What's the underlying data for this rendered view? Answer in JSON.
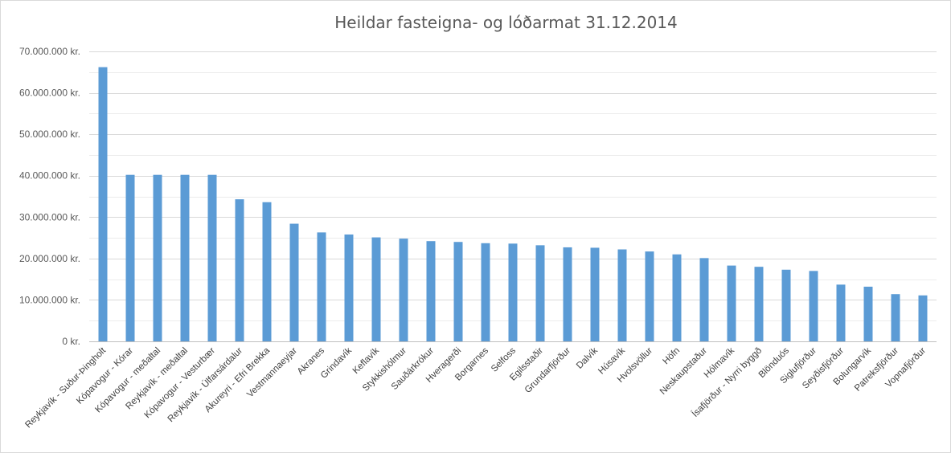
{
  "chart_data": {
    "type": "bar",
    "title": "Heildar fasteigna- og lóðarmat 31.12.2014",
    "xlabel": "",
    "ylabel": "",
    "ylim": [
      0,
      70000000
    ],
    "y_ticks": [
      {
        "value": 0,
        "label": "0 kr."
      },
      {
        "value": 10000000,
        "label": "10.000.000 kr."
      },
      {
        "value": 20000000,
        "label": "20.000.000 kr."
      },
      {
        "value": 30000000,
        "label": "30.000.000 kr."
      },
      {
        "value": 40000000,
        "label": "40.000.000 kr."
      },
      {
        "value": 50000000,
        "label": "50.000.000 kr."
      },
      {
        "value": 60000000,
        "label": "60.000.000 kr."
      },
      {
        "value": 70000000,
        "label": "70.000.000 kr."
      }
    ],
    "grid": true,
    "legend": "none",
    "bar_color": "#5b9bd5",
    "categories": [
      "Reykjavík - Suður-Þingholt",
      "Kópavogur - Kórar",
      "Kópavogur - meðaltal",
      "Reykjavík - meðaltal",
      "Kópavogur - Vesturbær",
      "Reykjavík - Úlfarsárdalur",
      "Akureyri - Efri Brekka",
      "Vestmannaeyjar",
      "Akranes",
      "Grindavík",
      "Keflavík",
      "Stykkishólmur",
      "Sauðárkrókur",
      "Hveragerði",
      "Borgarnes",
      "Selfoss",
      "Egilsstaðir",
      "Grundarfjörður",
      "Dalvík",
      "Húsavík",
      "Hvolsvöllur",
      "Höfn",
      "Neskaupstaður",
      "Hólmavík",
      "Ísafjörður - Nyrri byggð",
      "Blönduós",
      "Siglufjörður",
      "Seyðisfjörður",
      "Bolungarvík",
      "Patreksfjörður",
      "Vopnafjörður"
    ],
    "values": [
      66200000,
      40200000,
      40200000,
      40200000,
      40200000,
      34300000,
      33600000,
      28400000,
      26300000,
      25800000,
      25100000,
      24800000,
      24200000,
      24000000,
      23700000,
      23600000,
      23200000,
      22700000,
      22600000,
      22200000,
      21700000,
      21000000,
      20100000,
      18300000,
      18000000,
      17300000,
      17000000,
      13700000,
      13200000,
      11400000,
      11100000
    ]
  }
}
